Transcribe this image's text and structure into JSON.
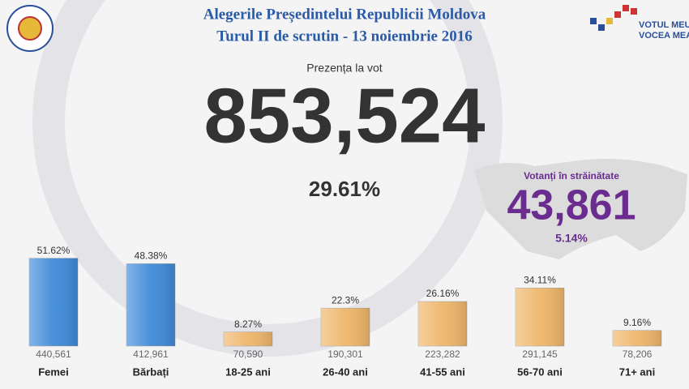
{
  "header": {
    "title": "Alegerile Președintelui Republicii Moldova",
    "subtitle": "Turul II de scrutin - 13 noiembrie 2016",
    "logo_text": [
      "VOTUL MEU,",
      "VOCEA MEA!"
    ]
  },
  "turnout": {
    "label": "Prezența la vot",
    "total": "853,524",
    "percent": "29.61%"
  },
  "abroad": {
    "label": "Votanți în străinătate",
    "total": "43,861",
    "percent": "5.14%"
  },
  "chart_data": {
    "type": "bar",
    "categories": [
      "Femei",
      "Bărbați",
      "18-25 ani",
      "26-40 ani",
      "41-55 ani",
      "56-70 ani",
      "71+ ani"
    ],
    "values": [
      51.62,
      48.38,
      8.27,
      22.3,
      26.16,
      34.11,
      9.16
    ],
    "value_labels": [
      "51.62%",
      "48.38%",
      "8.27%",
      "22.3%",
      "26.16%",
      "34.11%",
      "9.16%"
    ],
    "counts": [
      "440,561",
      "412,961",
      "70,590",
      "190,301",
      "223,282",
      "291,145",
      "78,206"
    ],
    "colors": [
      "#3f8ad8",
      "#3f8ad8",
      "#eeb66a",
      "#eeb66a",
      "#eeb66a",
      "#eeb66a",
      "#eeb66a"
    ]
  }
}
